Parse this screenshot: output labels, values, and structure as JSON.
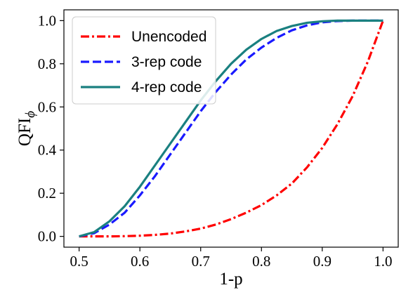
{
  "chart_data": {
    "type": "line",
    "xlabel": "1-p",
    "ylabel": "QFI",
    "ylabel_subscript": "ϕ",
    "xlim": [
      0.475,
      1.025
    ],
    "ylim": [
      -0.05,
      1.05
    ],
    "xticks": [
      0.5,
      0.6,
      0.7,
      0.8,
      0.9,
      1.0
    ],
    "xtick_labels": [
      "0.5",
      "0.6",
      "0.7",
      "0.8",
      "0.9",
      "1.0"
    ],
    "yticks": [
      0.0,
      0.2,
      0.4,
      0.6,
      0.8,
      1.0
    ],
    "ytick_labels": [
      "0.0",
      "0.2",
      "0.4",
      "0.6",
      "0.8",
      "1.0"
    ],
    "grid": false,
    "legend_position": "top-left",
    "x": [
      0.5,
      0.525,
      0.55,
      0.575,
      0.6,
      0.625,
      0.65,
      0.675,
      0.7,
      0.725,
      0.75,
      0.775,
      0.8,
      0.825,
      0.85,
      0.875,
      0.9,
      0.925,
      0.95,
      0.975,
      1.0
    ],
    "series": [
      {
        "name": "Unencoded",
        "color": "#ff0000",
        "style": "dashdot",
        "values": [
          0.0,
          0.0,
          0.0,
          0.001,
          0.003,
          0.007,
          0.013,
          0.023,
          0.036,
          0.055,
          0.08,
          0.11,
          0.145,
          0.19,
          0.245,
          0.32,
          0.41,
          0.52,
          0.65,
          0.81,
          1.0
        ]
      },
      {
        "name": "3-rep code",
        "color": "#1a1aff",
        "style": "dashed",
        "values": [
          0.0,
          0.015,
          0.055,
          0.11,
          0.19,
          0.28,
          0.38,
          0.48,
          0.58,
          0.67,
          0.75,
          0.82,
          0.875,
          0.92,
          0.955,
          0.978,
          0.992,
          0.998,
          1.0,
          1.0,
          1.0
        ]
      },
      {
        "name": "4-rep code",
        "color": "#1a8080",
        "style": "solid",
        "values": [
          0.0,
          0.02,
          0.07,
          0.14,
          0.23,
          0.33,
          0.43,
          0.53,
          0.63,
          0.72,
          0.8,
          0.865,
          0.915,
          0.952,
          0.975,
          0.99,
          0.997,
          1.0,
          1.0,
          1.0,
          1.0
        ]
      }
    ]
  }
}
